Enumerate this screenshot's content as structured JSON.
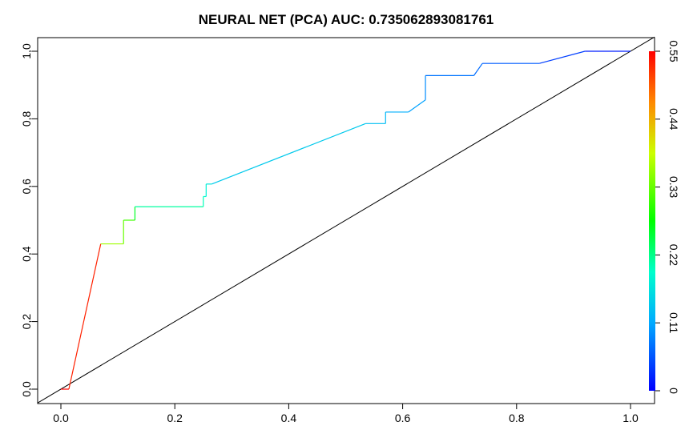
{
  "chart_data": {
    "type": "line",
    "title": "NEURAL NET (PCA) AUC: 0.735062893081761",
    "xlabel": "",
    "ylabel": "",
    "xlim": [
      0,
      1
    ],
    "ylim": [
      0,
      1
    ],
    "grid": false,
    "x_ticks": [
      0.0,
      0.2,
      0.4,
      0.6,
      0.8,
      1.0
    ],
    "x_tick_labels": [
      "0.0",
      "0.2",
      "0.4",
      "0.6",
      "0.8",
      "1.0"
    ],
    "y_ticks": [
      0.0,
      0.2,
      0.4,
      0.6,
      0.8,
      1.0
    ],
    "y_tick_labels": [
      "0,0",
      "0,2",
      "0,4",
      "0,6",
      "0,8",
      "1,0"
    ],
    "colorbar": {
      "range": [
        0,
        0.55
      ],
      "ticks": [
        0,
        0.11,
        0.22,
        0.33,
        0.44,
        0.55
      ],
      "tick_labels": [
        "0",
        "0.11",
        "0.22",
        "0.33",
        "0.44",
        "0.55"
      ],
      "palette": "rainbow"
    },
    "diagonal": {
      "from": [
        0,
        0
      ],
      "to": [
        1,
        1
      ],
      "color": "#000000"
    },
    "series": [
      {
        "color_by": "threshold",
        "points": [
          {
            "x": 0.0,
            "y": 0.0,
            "t": 0.55
          },
          {
            "x": 0.014,
            "y": 0.0,
            "t": 0.55
          },
          {
            "x": 0.07,
            "y": 0.43,
            "t": 0.53
          },
          {
            "x": 0.11,
            "y": 0.43,
            "t": 0.36
          },
          {
            "x": 0.11,
            "y": 0.5,
            "t": 0.33
          },
          {
            "x": 0.13,
            "y": 0.5,
            "t": 0.31
          },
          {
            "x": 0.13,
            "y": 0.54,
            "t": 0.26
          },
          {
            "x": 0.25,
            "y": 0.54,
            "t": 0.21
          },
          {
            "x": 0.25,
            "y": 0.57,
            "t": 0.2
          },
          {
            "x": 0.255,
            "y": 0.57,
            "t": 0.19
          },
          {
            "x": 0.255,
            "y": 0.607,
            "t": 0.18
          },
          {
            "x": 0.265,
            "y": 0.607,
            "t": 0.17
          },
          {
            "x": 0.535,
            "y": 0.786,
            "t": 0.14
          },
          {
            "x": 0.57,
            "y": 0.786,
            "t": 0.13
          },
          {
            "x": 0.57,
            "y": 0.82,
            "t": 0.125
          },
          {
            "x": 0.61,
            "y": 0.82,
            "t": 0.115
          },
          {
            "x": 0.64,
            "y": 0.856,
            "t": 0.105
          },
          {
            "x": 0.64,
            "y": 0.928,
            "t": 0.09
          },
          {
            "x": 0.725,
            "y": 0.928,
            "t": 0.075
          },
          {
            "x": 0.74,
            "y": 0.964,
            "t": 0.07
          },
          {
            "x": 0.84,
            "y": 0.964,
            "t": 0.06
          },
          {
            "x": 0.92,
            "y": 1.0,
            "t": 0.04
          },
          {
            "x": 1.0,
            "y": 1.0,
            "t": 0.02
          }
        ]
      }
    ]
  }
}
